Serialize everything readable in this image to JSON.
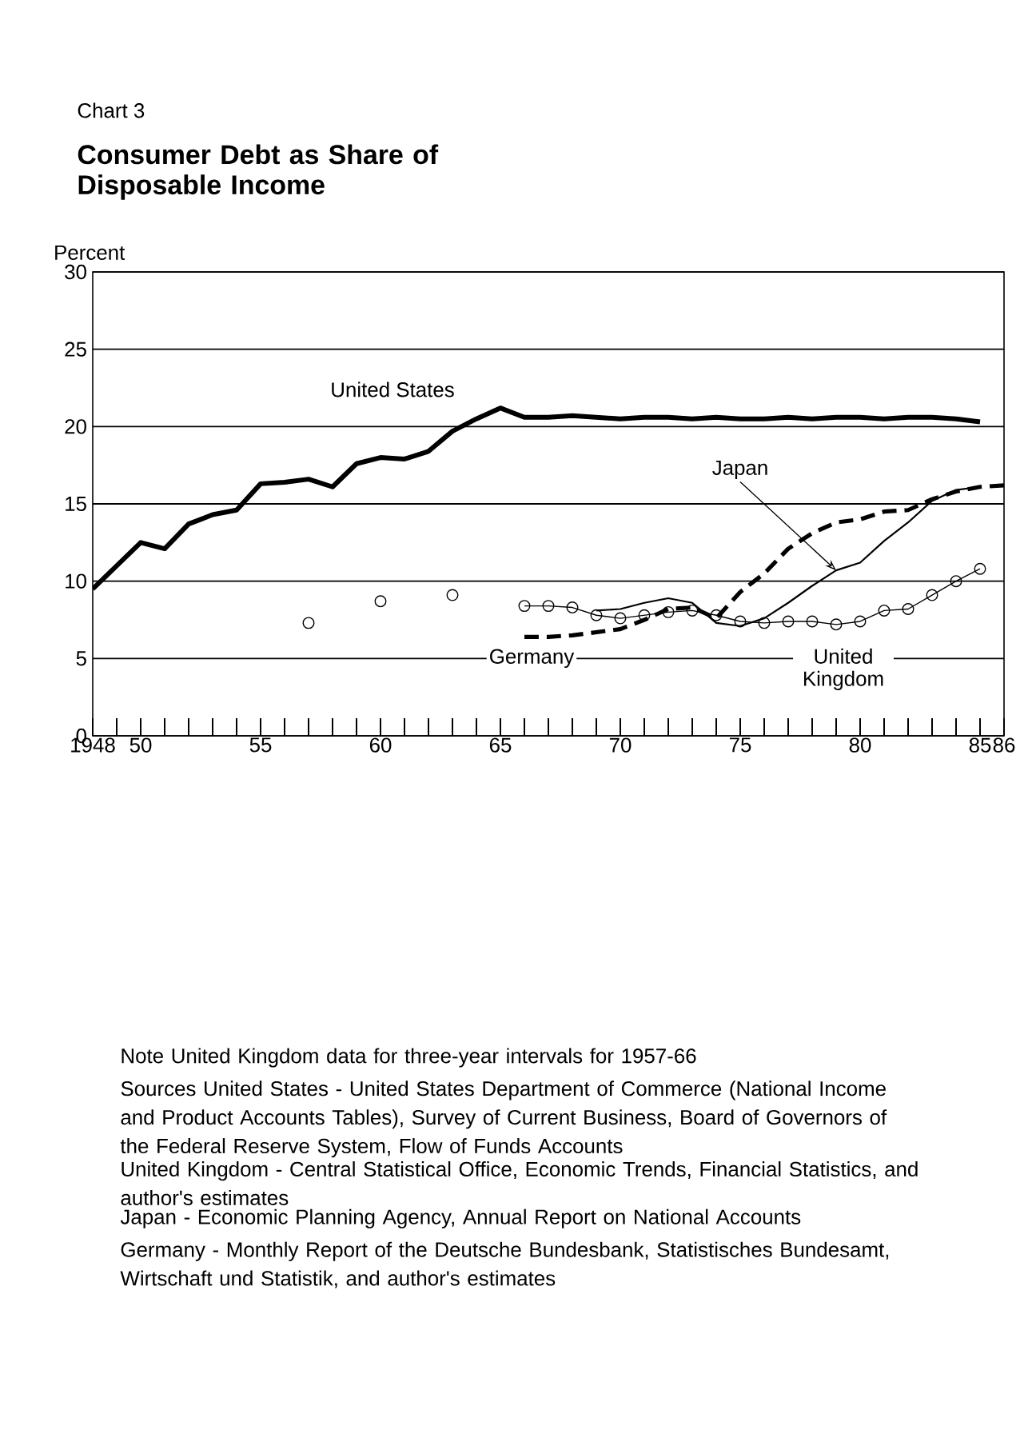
{
  "chart_data": {
    "type": "line",
    "subtitle": "Chart 3",
    "title": "Consumer Debt as Share of Disposable Income",
    "ylabel": "Percent",
    "xlim": [
      1948,
      1986
    ],
    "ylim": [
      0,
      30
    ],
    "yticks": [
      0,
      5,
      10,
      15,
      20,
      25,
      30
    ],
    "xticks": [
      {
        "value": 1948,
        "label": "1948"
      },
      {
        "value": 1949,
        "label": null
      },
      {
        "value": 1950,
        "label": "50"
      },
      {
        "value": 1951,
        "label": null
      },
      {
        "value": 1952,
        "label": null
      },
      {
        "value": 1953,
        "label": null
      },
      {
        "value": 1954,
        "label": null
      },
      {
        "value": 1955,
        "label": "55"
      },
      {
        "value": 1956,
        "label": null
      },
      {
        "value": 1957,
        "label": null
      },
      {
        "value": 1958,
        "label": null
      },
      {
        "value": 1959,
        "label": null
      },
      {
        "value": 1960,
        "label": "60"
      },
      {
        "value": 1961,
        "label": null
      },
      {
        "value": 1962,
        "label": null
      },
      {
        "value": 1963,
        "label": null
      },
      {
        "value": 1964,
        "label": null
      },
      {
        "value": 1965,
        "label": "65"
      },
      {
        "value": 1966,
        "label": null
      },
      {
        "value": 1967,
        "label": null
      },
      {
        "value": 1968,
        "label": null
      },
      {
        "value": 1969,
        "label": null
      },
      {
        "value": 1970,
        "label": "70"
      },
      {
        "value": 1971,
        "label": null
      },
      {
        "value": 1972,
        "label": null
      },
      {
        "value": 1973,
        "label": null
      },
      {
        "value": 1974,
        "label": null
      },
      {
        "value": 1975,
        "label": "75"
      },
      {
        "value": 1976,
        "label": null
      },
      {
        "value": 1977,
        "label": null
      },
      {
        "value": 1978,
        "label": null
      },
      {
        "value": 1979,
        "label": null
      },
      {
        "value": 1980,
        "label": "80"
      },
      {
        "value": 1981,
        "label": null
      },
      {
        "value": 1982,
        "label": null
      },
      {
        "value": 1983,
        "label": null
      },
      {
        "value": 1984,
        "label": null
      },
      {
        "value": 1985,
        "label": "85"
      },
      {
        "value": 1986,
        "label": "86"
      }
    ],
    "grid": "y",
    "legend": false,
    "series": [
      {
        "name": "United States",
        "color": "#000000",
        "line_style": "solid",
        "marker": "none",
        "x": [
          1948,
          1949,
          1950,
          1951,
          1952,
          1953,
          1954,
          1955,
          1956,
          1957,
          1958,
          1959,
          1960,
          1961,
          1962,
          1963,
          1964,
          1965,
          1966,
          1967,
          1968,
          1969,
          1970,
          1971,
          1972,
          1973,
          1974,
          1975,
          1976,
          1977,
          1978,
          1979,
          1980,
          1981,
          1982,
          1983,
          1984,
          1985
        ],
        "values": [
          9.5,
          11.0,
          12.5,
          12.1,
          13.7,
          14.3,
          14.6,
          16.3,
          16.4,
          16.6,
          16.1,
          17.6,
          18.0,
          17.9,
          18.4,
          19.7,
          20.5,
          21.2,
          20.6,
          20.6,
          20.7,
          20.6,
          20.5,
          20.6,
          20.6,
          20.5,
          20.6,
          20.5,
          20.5,
          20.6,
          20.5,
          20.6,
          20.6,
          20.5,
          20.6,
          20.6,
          20.5,
          20.3
        ]
      },
      {
        "name": "Japan",
        "color": "#000000",
        "line_style": "solid",
        "marker": "none",
        "x": [
          1969,
          1970,
          1971,
          1972,
          1973,
          1974,
          1975,
          1976,
          1977,
          1978,
          1979,
          1980,
          1981,
          1982,
          1983,
          1984,
          1985
        ],
        "values": [
          8.1,
          8.2,
          8.6,
          8.9,
          8.6,
          7.3,
          7.1,
          7.6,
          8.6,
          9.7,
          10.7,
          11.2,
          12.6,
          13.8,
          15.2,
          15.9,
          16.1
        ]
      },
      {
        "name": "Germany",
        "color": "#000000",
        "line_style": "dashed",
        "marker": "none",
        "x": [
          1966,
          1967,
          1968,
          1969,
          1970,
          1971,
          1972,
          1973,
          1974,
          1975,
          1976,
          1977,
          1978,
          1979,
          1980,
          1981,
          1982,
          1983,
          1984,
          1985,
          1986
        ],
        "values": [
          6.4,
          6.4,
          6.5,
          6.7,
          6.9,
          7.5,
          8.2,
          8.3,
          7.6,
          9.3,
          10.5,
          12.1,
          13.1,
          13.8,
          14.0,
          14.5,
          14.6,
          15.3,
          15.8,
          16.1,
          16.2
        ]
      },
      {
        "name": "United Kingdom",
        "color": "#000000",
        "line_style": "solid",
        "marker": "circle",
        "x": [
          1957,
          1958,
          1959,
          1960,
          1961,
          1962,
          1963,
          1964,
          1965,
          1966,
          1967,
          1968,
          1969,
          1970,
          1971,
          1972,
          1973,
          1974,
          1975,
          1976,
          1977,
          1978,
          1979,
          1980,
          1981,
          1982,
          1983,
          1984,
          1985
        ],
        "values": [
          7.3,
          null,
          null,
          8.7,
          null,
          null,
          9.1,
          null,
          null,
          8.4,
          8.4,
          8.3,
          7.8,
          7.6,
          7.8,
          8.0,
          8.1,
          7.8,
          7.4,
          7.3,
          7.4,
          7.4,
          7.2,
          7.4,
          8.1,
          8.2,
          9.1,
          10.0,
          10.8
        ]
      }
    ],
    "annotations": [
      "Note  United Kingdom data for three-year intervals for 1957-66",
      "Sources  United States - United States Department of Commerce (National Income and Product Accounts Tables), Survey of Current Business, Board of Governors of the Federal Reserve System, Flow of Funds Accounts",
      "United Kingdom - Central Statistical Office, Economic Trends, Financial Statistics, and author's estimates",
      "Japan - Economic Planning Agency, Annual Report on National Accounts",
      "Germany - Monthly Report of the Deutsche Bundesbank, Statistisches Bundesamt, Wirtschaft und Statistik, and author's estimates"
    ]
  }
}
